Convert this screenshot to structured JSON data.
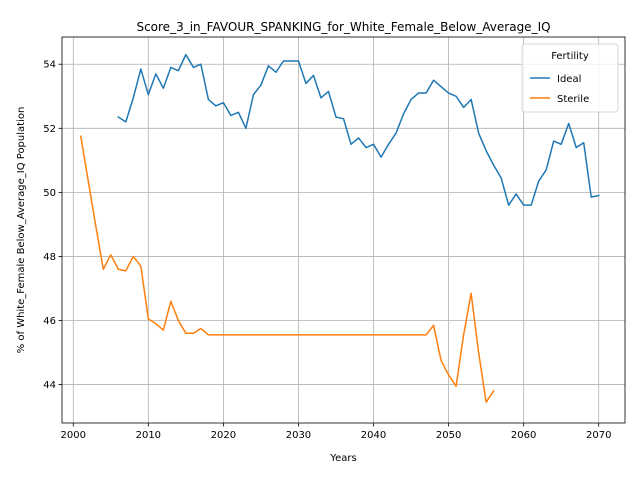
{
  "chart_data": {
    "type": "line",
    "title": "Score_3_in_FAVOUR_SPANKING_for_White_Female_Below_Average_IQ",
    "xlabel": "Years",
    "ylabel": "% of White_Female Below_Average_IQ Population",
    "xlim": [
      1998.5,
      2073.5
    ],
    "ylim": [
      42.8,
      54.85
    ],
    "xticks": [
      2000,
      2010,
      2020,
      2030,
      2040,
      2050,
      2060,
      2070
    ],
    "yticks": [
      44,
      46,
      48,
      50,
      52,
      54
    ],
    "grid": true,
    "legend": {
      "title": "Fertility",
      "position": "top-right"
    },
    "series": [
      {
        "name": "Ideal",
        "color": "#1f77b4",
        "x": [
          2006,
          2007,
          2008,
          2009,
          2010,
          2011,
          2012,
          2013,
          2014,
          2015,
          2016,
          2017,
          2018,
          2019,
          2020,
          2021,
          2022,
          2023,
          2024,
          2025,
          2026,
          2027,
          2028,
          2029,
          2030,
          2031,
          2032,
          2033,
          2034,
          2035,
          2036,
          2037,
          2038,
          2039,
          2040,
          2041,
          2042,
          2043,
          2044,
          2045,
          2046,
          2047,
          2048,
          2049,
          2050,
          2051,
          2052,
          2053,
          2054,
          2055,
          2056,
          2057,
          2058,
          2059,
          2060,
          2061,
          2062,
          2063,
          2064,
          2065,
          2066,
          2067,
          2068,
          2069,
          2070
        ],
        "values": [
          52.35,
          52.2,
          52.95,
          53.85,
          53.05,
          53.7,
          53.25,
          53.9,
          53.8,
          54.3,
          53.9,
          54.0,
          52.9,
          52.7,
          52.8,
          52.4,
          52.5,
          52.0,
          53.05,
          53.35,
          53.95,
          53.75,
          54.1,
          54.1,
          54.1,
          53.4,
          53.65,
          52.95,
          53.15,
          52.35,
          52.3,
          51.5,
          51.7,
          51.4,
          51.5,
          51.1,
          51.5,
          51.85,
          52.45,
          52.9,
          53.1,
          53.1,
          53.5,
          53.3,
          53.1,
          53.0,
          52.65,
          52.9,
          51.85,
          51.3,
          50.85,
          50.45,
          49.6,
          49.95,
          49.6,
          49.6,
          50.35,
          50.7,
          51.6,
          51.5,
          52.15,
          51.4,
          51.55,
          49.85,
          49.9
        ]
      },
      {
        "name": "Sterile",
        "color": "#ff7f0e",
        "x": [
          2001,
          2002,
          2003,
          2004,
          2005,
          2006,
          2007,
          2008,
          2009,
          2010,
          2011,
          2012,
          2013,
          2014,
          2015,
          2016,
          2017,
          2018,
          2019,
          2020,
          2021,
          2022,
          2023,
          2024,
          2025,
          2026,
          2027,
          2028,
          2029,
          2030,
          2031,
          2032,
          2033,
          2034,
          2035,
          2036,
          2037,
          2038,
          2039,
          2040,
          2041,
          2042,
          2043,
          2044,
          2045,
          2046,
          2047,
          2048,
          2049,
          2050,
          2051,
          2052,
          2053,
          2054,
          2055,
          2056
        ],
        "values": [
          51.75,
          50.35,
          48.95,
          47.6,
          48.05,
          47.6,
          47.55,
          48.0,
          47.7,
          46.05,
          45.9,
          45.7,
          46.6,
          46.0,
          45.6,
          45.6,
          45.75,
          45.55,
          45.55,
          45.55,
          45.55,
          45.55,
          45.55,
          45.55,
          45.55,
          45.55,
          45.55,
          45.55,
          45.55,
          45.55,
          45.55,
          45.55,
          45.55,
          45.55,
          45.55,
          45.55,
          45.55,
          45.55,
          45.55,
          45.55,
          45.55,
          45.55,
          45.55,
          45.55,
          45.55,
          45.55,
          45.55,
          45.85,
          44.75,
          44.3,
          43.95,
          45.55,
          46.85,
          45.0,
          43.45,
          43.8
        ]
      }
    ]
  }
}
